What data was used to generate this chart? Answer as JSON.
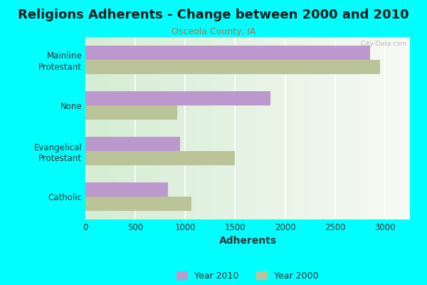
{
  "title": "Religions Adherents - Change between 2000 and 2010",
  "subtitle": "Osceola County, IA",
  "categories": [
    "Catholic",
    "Evangelical\nProtestant",
    "None",
    "Mainline\nProtestant"
  ],
  "values_2010": [
    830,
    950,
    1850,
    2850
  ],
  "values_2000": [
    1060,
    1500,
    920,
    2950
  ],
  "color_2010": "#bb99cc",
  "color_2000": "#bbc499",
  "xlabel": "Adherents",
  "xlim": [
    0,
    3250
  ],
  "xticks": [
    0,
    500,
    1000,
    1500,
    2000,
    2500,
    3000
  ],
  "legend_labels": [
    "Year 2010",
    "Year 2000"
  ],
  "background_color": "#00ffff",
  "title_fontsize": 13,
  "subtitle_fontsize": 9,
  "bar_height": 0.32,
  "figsize": [
    6.0,
    4.0
  ],
  "dpi": 100
}
